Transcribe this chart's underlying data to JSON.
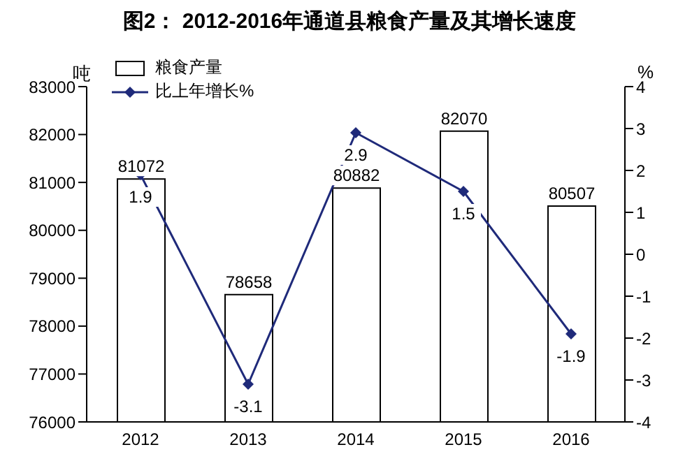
{
  "chart_data": {
    "type": "bar",
    "title": "图2：  2012-2016年通道县粮食产量及其增长速度",
    "ylabel": "吨",
    "y2label": "%",
    "categories": [
      "2012",
      "2013",
      "2014",
      "2015",
      "2016"
    ],
    "series": [
      {
        "name": "粮食产量",
        "color": "#ffffff",
        "values": [
          81072,
          78658,
          80882,
          82070,
          80507
        ]
      },
      {
        "name": "比上年增长%",
        "type": "line",
        "axis": "y2",
        "color": "#1f2a7a",
        "marker": "diamond",
        "values": [
          1.9,
          -3.1,
          2.9,
          1.5,
          -1.9
        ]
      }
    ],
    "ylim": [
      76000,
      83000
    ],
    "yticks": [
      76000,
      77000,
      78000,
      79000,
      80000,
      81000,
      82000,
      83000
    ],
    "y2lim": [
      -4,
      4
    ],
    "y2ticks": [
      -4,
      -3,
      -2,
      -1,
      0,
      1,
      2,
      3,
      4
    ],
    "data_labels": true,
    "legend": "top left",
    "grid": false
  }
}
